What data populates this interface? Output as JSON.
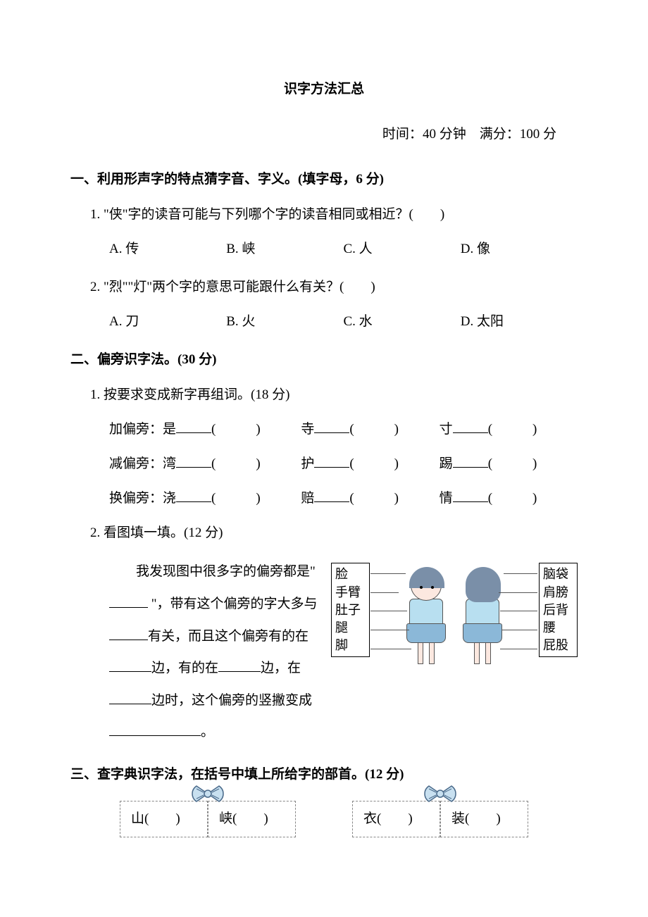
{
  "title": "识字方法汇总",
  "meta": {
    "time_label": "时间：",
    "time_value": "40 分钟",
    "score_label": "满分：",
    "score_value": "100 分"
  },
  "section1": {
    "title": "一、利用形声字的特点猜字音、字义。(填字母，6 分)",
    "q1": {
      "text": "1. \"侠\"字的读音可能与下列哪个字的读音相同或相近？(　　)",
      "options": {
        "a": "A. 传",
        "b": "B. 峡",
        "c": "C. 人",
        "d": "D. 像"
      }
    },
    "q2": {
      "text": "2. \"烈\"\"灯\"两个字的意思可能跟什么有关？(　　)",
      "options": {
        "a": "A. 刀",
        "b": "B. 火",
        "c": "C. 水",
        "d": "D. 太阳"
      }
    }
  },
  "section2": {
    "title": "二、偏旁识字法。(30 分)",
    "q1": {
      "text": "1. 按要求变成新字再组词。(18 分)",
      "rows": [
        {
          "label": "加偏旁：",
          "chars": [
            "是",
            "寺",
            "寸"
          ]
        },
        {
          "label": "减偏旁：",
          "chars": [
            "湾",
            "护",
            "踢"
          ]
        },
        {
          "label": "换偏旁：",
          "chars": [
            "浇",
            "赔",
            "情"
          ]
        }
      ]
    },
    "q2": {
      "text": "2. 看图填一填。(12 分)",
      "passage_parts": [
        "我发现图中很多字的偏旁都是\" ",
        " \"，带有这个偏旁的字大多与",
        "有关，而且这个偏旁有的在",
        "边，有的在",
        "边，在",
        "边时，这个偏旁的竖撇变成",
        "。"
      ],
      "left_labels": [
        "脸",
        "手臂",
        "肚子",
        "腿",
        "脚"
      ],
      "right_labels": [
        "脑袋",
        "肩膀",
        "后背",
        "腰",
        "屁股"
      ]
    }
  },
  "section3": {
    "title": "三、查字典识字法，在括号中填上所给字的部首。(12 分)",
    "groups": [
      {
        "left": "山(　　)",
        "right": "峡(　　)"
      },
      {
        "left": "衣(　　)",
        "right": "装(　　)"
      }
    ]
  },
  "colors": {
    "text": "#000000",
    "background": "#ffffff",
    "border_dash": "#888888",
    "girl_hair": "#7a8fa8",
    "girl_shirt": "#b8dff0",
    "girl_skirt": "#8bb8d8",
    "girl_skin": "#fce8e0",
    "bow_fill": "#c8e0f0",
    "bow_stroke": "#4a6a8a"
  }
}
